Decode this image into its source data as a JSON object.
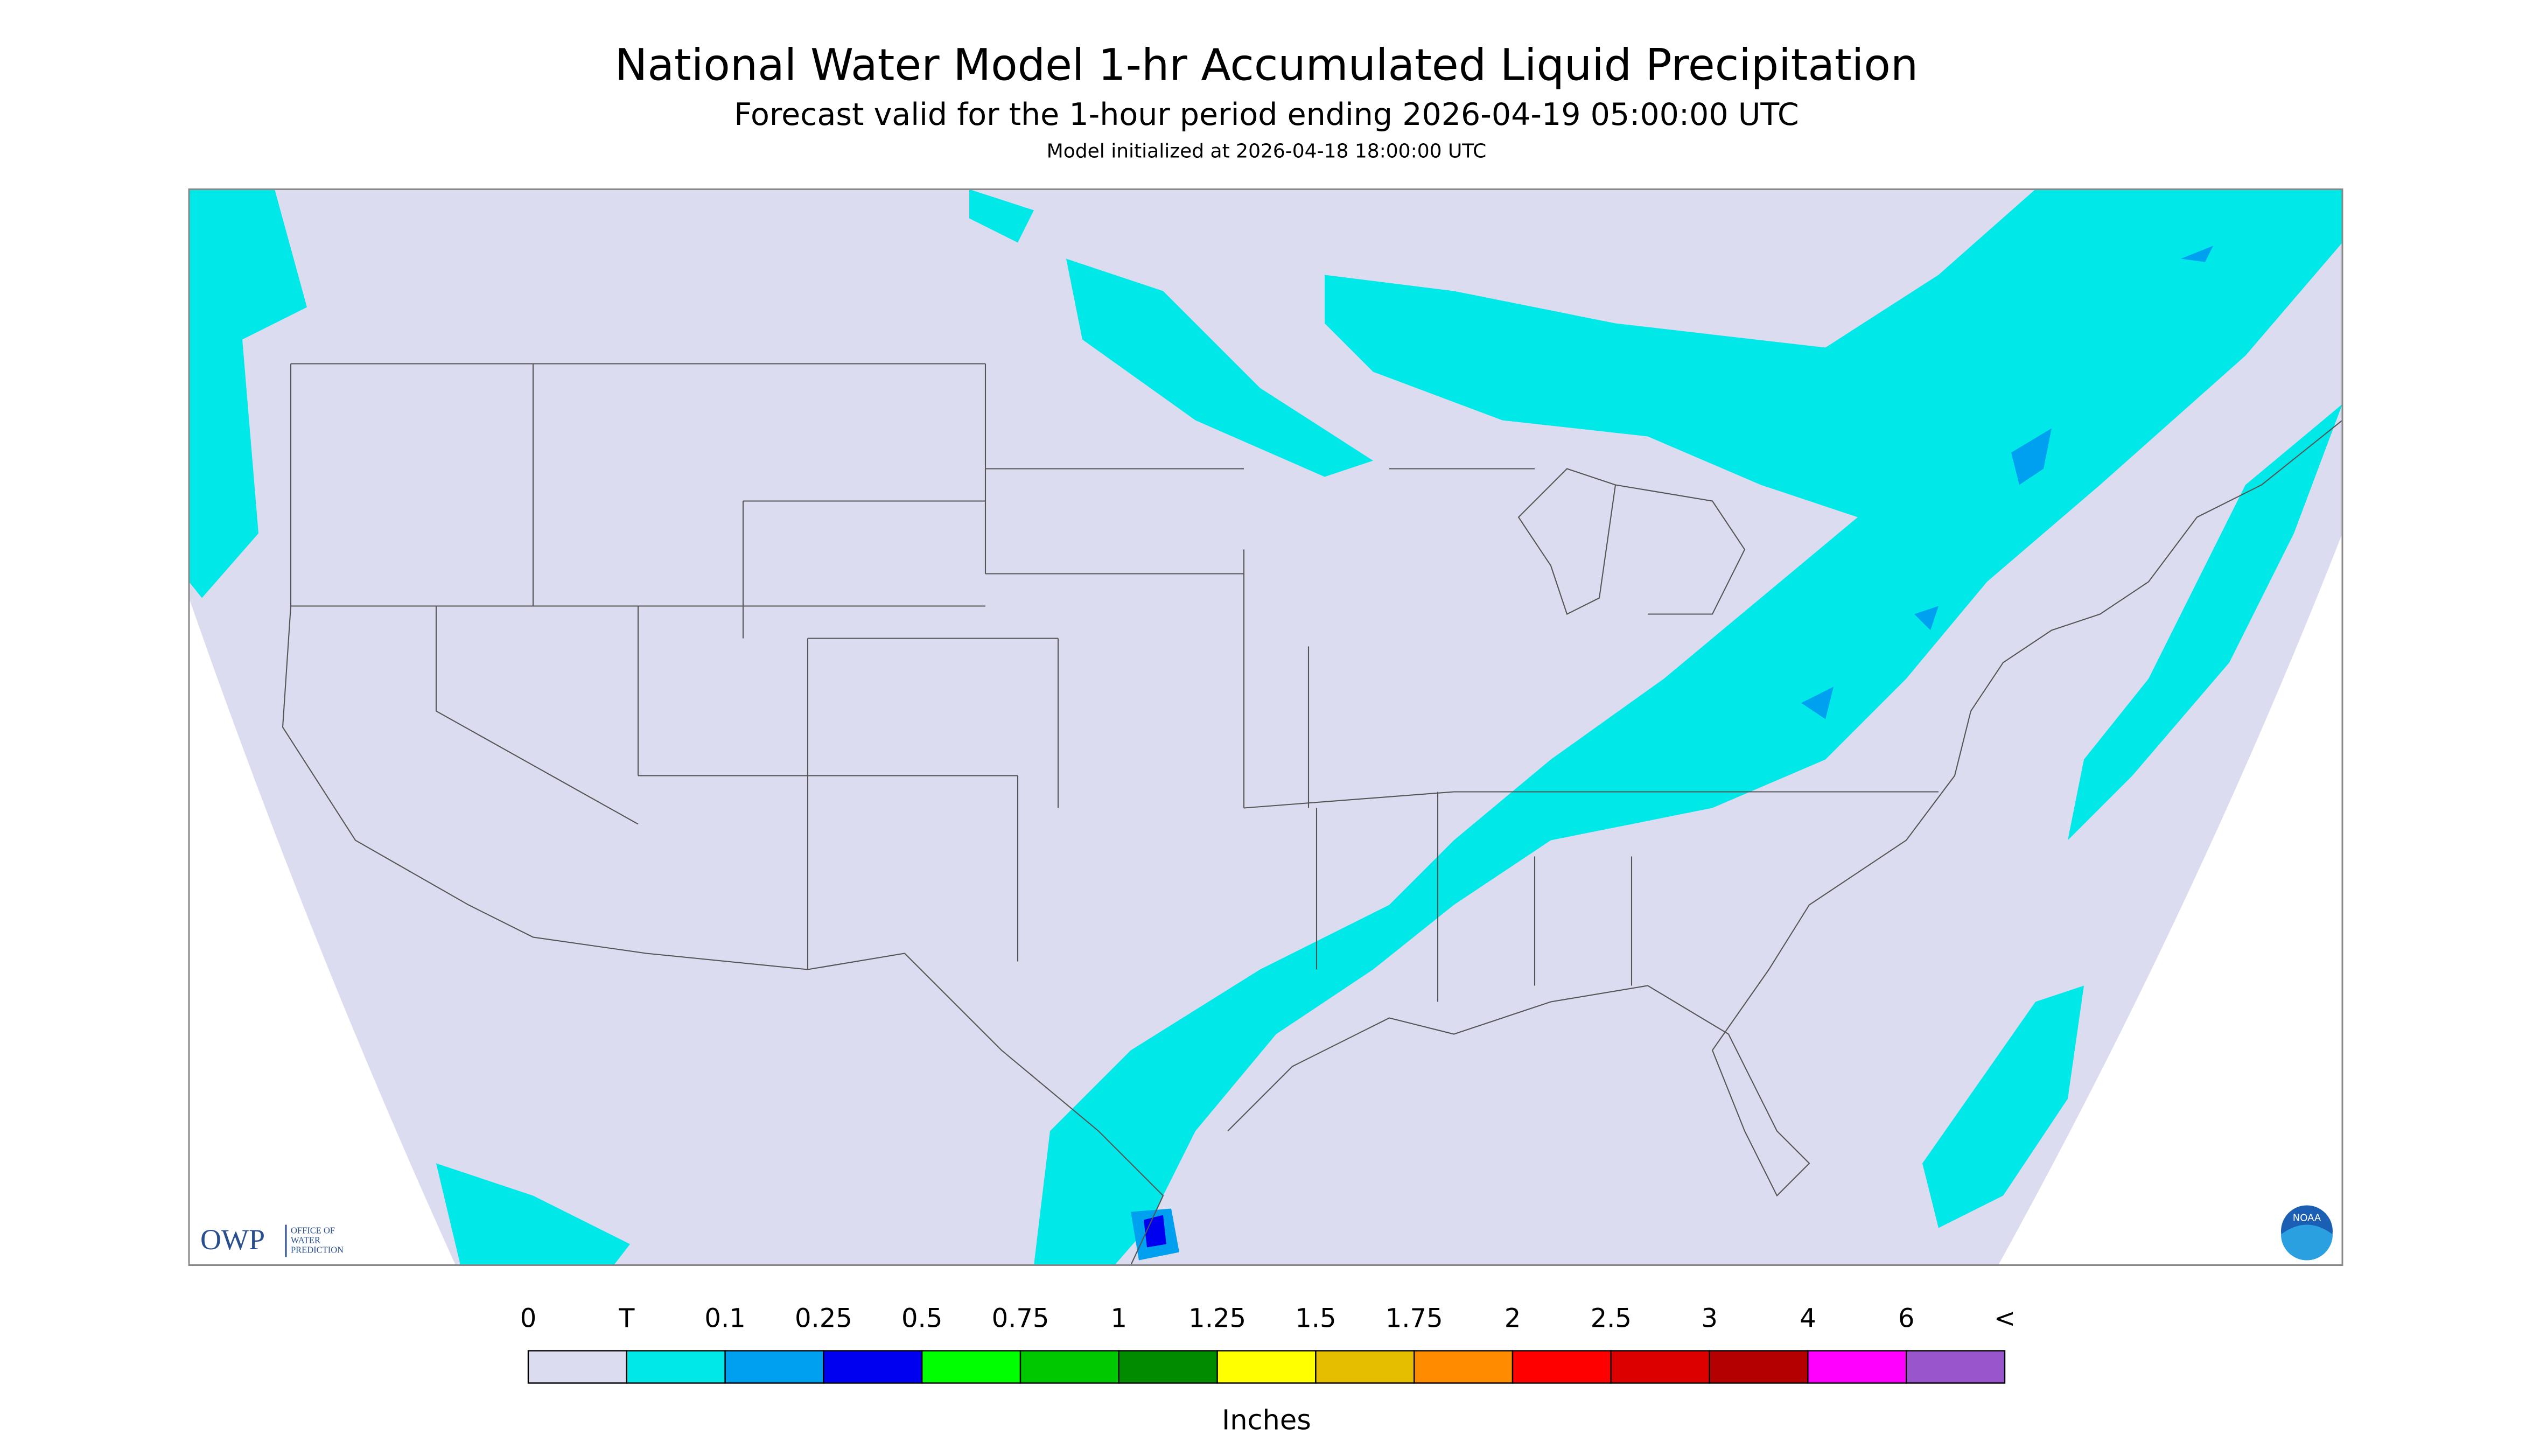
{
  "header": {
    "title": "National Water Model 1-hr Accumulated Liquid Precipitation",
    "subtitle": "Forecast valid for the 1-hour period ending 2026-04-19 05:00:00 UTC",
    "init": "Model initialized at 2026-04-18 18:00:00 UTC"
  },
  "logos": {
    "owp": "OWP",
    "owp_text": [
      "OFFICE OF",
      "WATER",
      "PREDICTION"
    ],
    "noaa": "NOAA"
  },
  "legend": {
    "labels": [
      "0",
      "T",
      "0.1",
      "0.25",
      "0.5",
      "0.75",
      "1",
      "1.25",
      "1.5",
      "1.75",
      "2",
      "2.5",
      "3",
      "4",
      "6",
      "<"
    ],
    "colors": [
      "#dcdcf0",
      "#00e8e8",
      "#00a0f0",
      "#0000f0",
      "#00ff00",
      "#00c800",
      "#008c00",
      "#ffff00",
      "#e6be00",
      "#ff8c00",
      "#ff0000",
      "#dc0000",
      "#b40000",
      "#ff00ff",
      "#9955cc"
    ],
    "unit": "Inches"
  }
}
